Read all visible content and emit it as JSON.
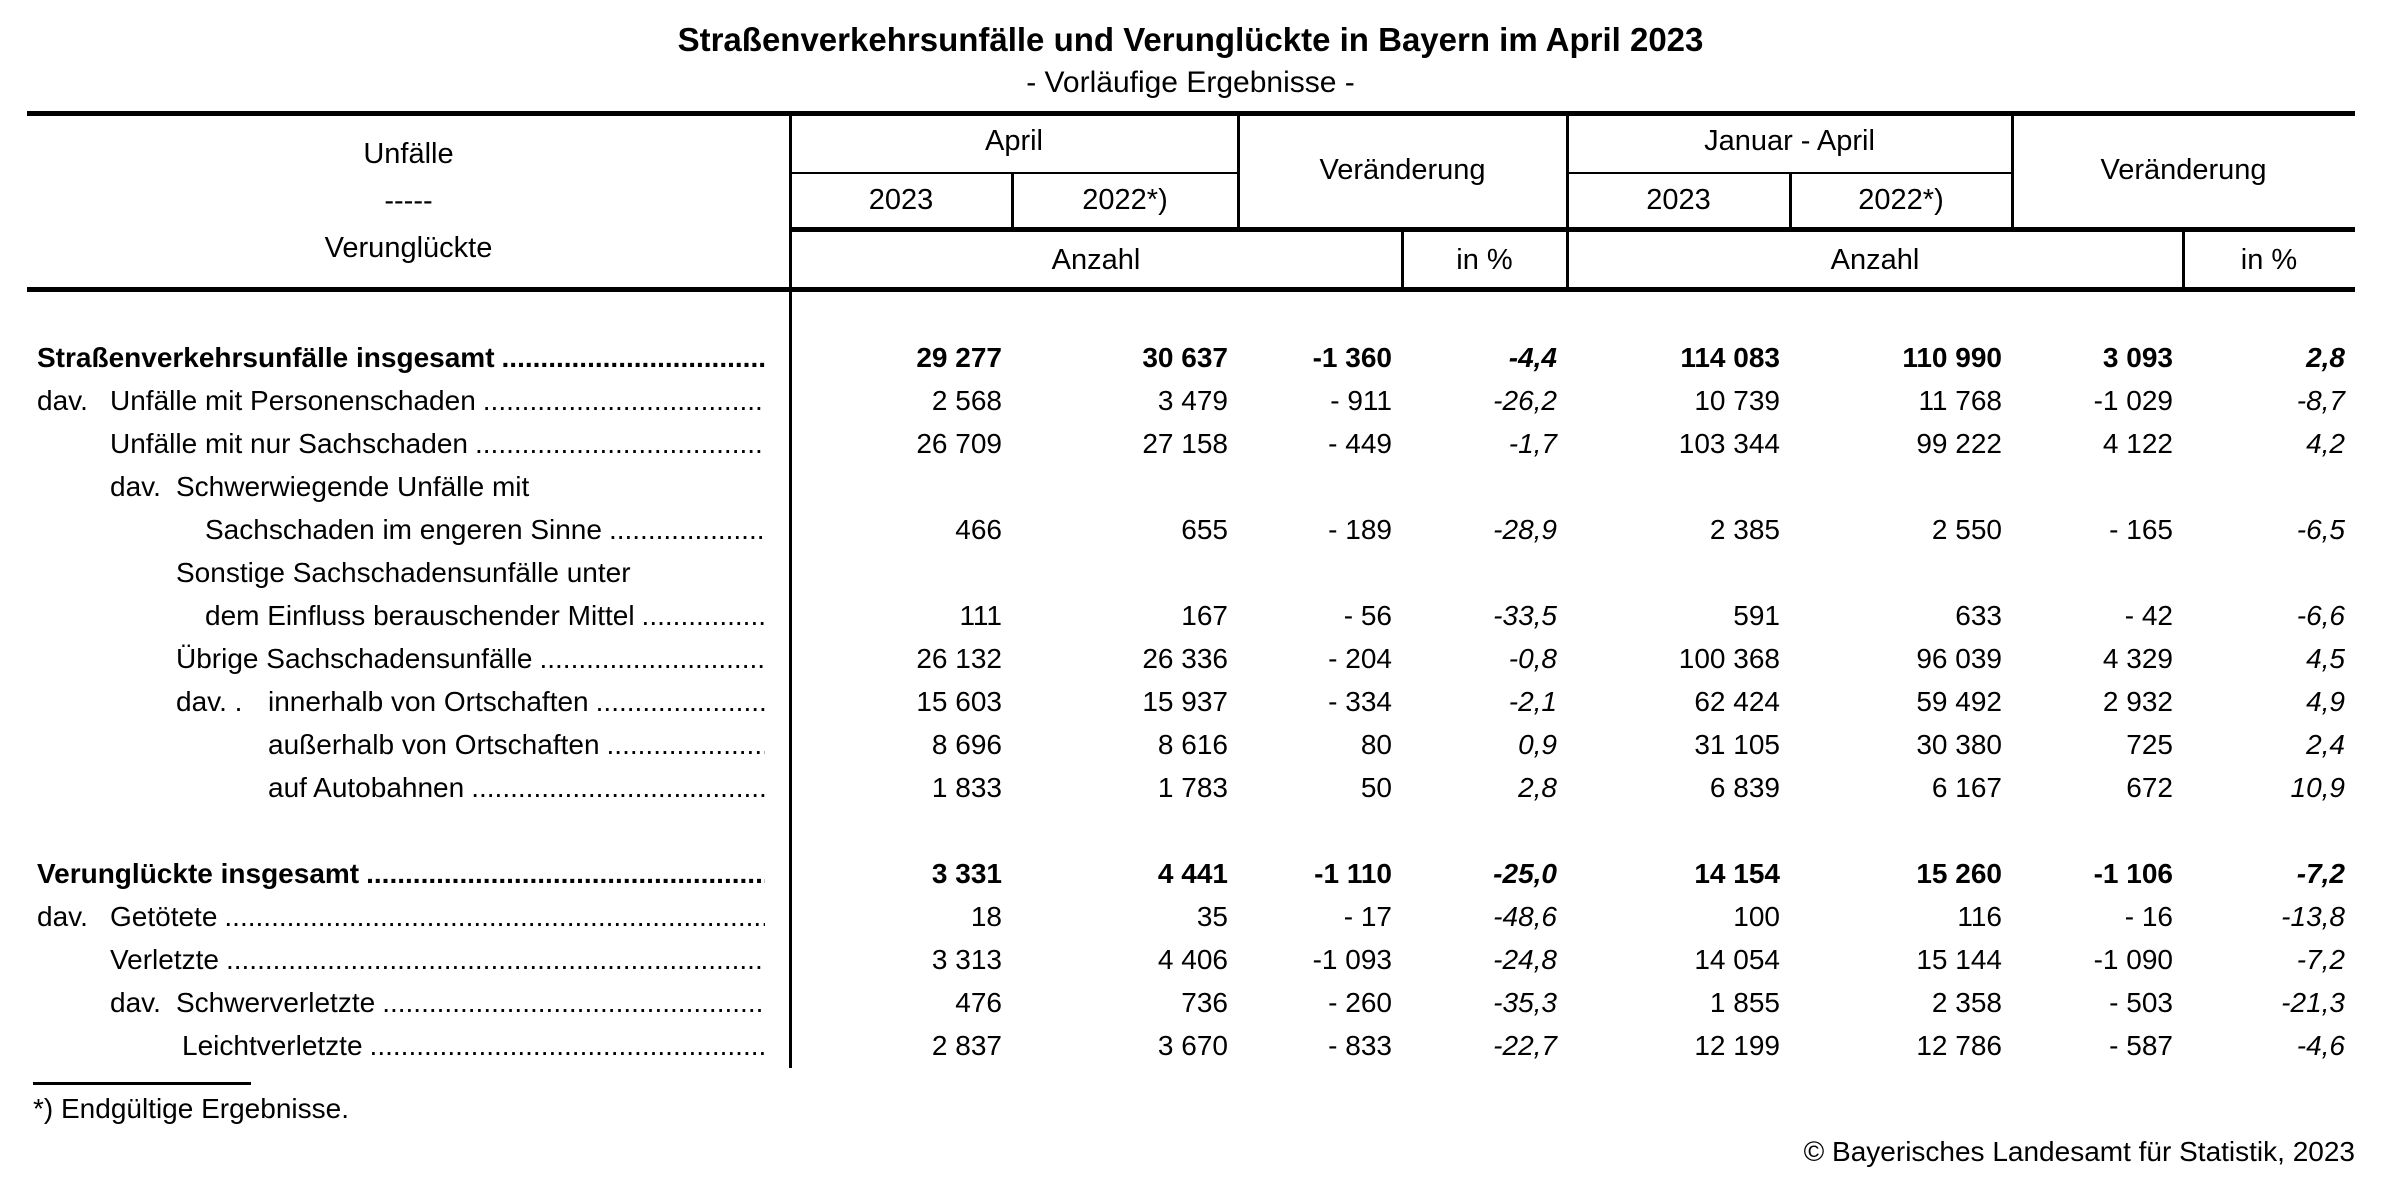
{
  "title": "Straßenverkehrsunfälle und Verunglückte in Bayern im April 2023",
  "subtitle": "- Vorläufige Ergebnisse -",
  "header": {
    "stub_line1": "Unfälle",
    "stub_line2": "-----",
    "stub_line3": "Verunglückte",
    "group_april": "April",
    "group_change_1": "Veränderung",
    "group_jan_april": "Januar - April",
    "group_change_2": "Veränderung",
    "year_2023_a": "2023",
    "year_2022_a": "2022*)",
    "year_2023_b": "2023",
    "year_2022_b": "2022*)",
    "anzahl_1": "Anzahl",
    "in_pct_1": "in %",
    "anzahl_2": "Anzahl",
    "in_pct_2": "in %"
  },
  "table": {
    "leader_dots": "........................................................................................................................................................",
    "rows": [
      {
        "text": "Straßenverkehrsunfälle insgesamt",
        "indent": 10,
        "bold": true,
        "leader": true,
        "values": [
          "29 277",
          "30 637",
          "-1 360",
          "-4,4",
          "114 083",
          "110 990",
          "3 093",
          "2,8"
        ]
      },
      {
        "prefix": "dav.",
        "prefix_indent": 10,
        "text": "Unfälle mit Personenschaden",
        "indent": 83,
        "leader": true,
        "values": [
          "2 568",
          "3 479",
          "- 911",
          "-26,2",
          "10 739",
          "11 768",
          "-1 029",
          "-8,7"
        ]
      },
      {
        "text": "Unfälle mit nur Sachschaden",
        "indent": 83,
        "leader": true,
        "values": [
          "26 709",
          "27 158",
          "- 449",
          "-1,7",
          "103 344",
          "99 222",
          "4 122",
          "4,2"
        ]
      },
      {
        "prefix": "dav.",
        "prefix_indent": 83,
        "text": "Schwerwiegende Unfälle mit",
        "indent": 149,
        "leader": false,
        "values": [
          "",
          "",
          "",
          "",
          "",
          "",
          "",
          ""
        ]
      },
      {
        "text": "Sachschaden im engeren Sinne",
        "indent": 178,
        "leader": true,
        "values": [
          "466",
          "655",
          "- 189",
          "-28,9",
          "2 385",
          "2 550",
          "- 165",
          "-6,5"
        ]
      },
      {
        "text": "Sonstige Sachschadensunfälle unter",
        "indent": 149,
        "leader": false,
        "values": [
          "",
          "",
          "",
          "",
          "",
          "",
          "",
          ""
        ]
      },
      {
        "text": "dem Einfluss berauschender Mittel",
        "indent": 178,
        "leader": true,
        "values": [
          "111",
          "167",
          "- 56",
          "-33,5",
          "591",
          "633",
          "- 42",
          "-6,6"
        ]
      },
      {
        "text": "Übrige Sachschadensunfälle",
        "indent": 149,
        "leader": true,
        "values": [
          "26 132",
          "26 336",
          "- 204",
          "-0,8",
          "100 368",
          "96 039",
          "4 329",
          "4,5"
        ]
      },
      {
        "prefix": "dav. .",
        "prefix_indent": 149,
        "text": "innerhalb von Ortschaften",
        "indent": 241,
        "leader": true,
        "values": [
          "15 603",
          "15 937",
          "- 334",
          "-2,1",
          "62 424",
          "59 492",
          "2 932",
          "4,9"
        ]
      },
      {
        "text": "außerhalb von Ortschaften",
        "indent": 241,
        "leader": true,
        "values": [
          "8 696",
          "8 616",
          "80",
          "0,9",
          "31 105",
          "30 380",
          "725",
          "2,4"
        ]
      },
      {
        "text": "auf Autobahnen",
        "indent": 241,
        "leader": true,
        "values": [
          "1 833",
          "1 783",
          "50",
          "2,8",
          "6 839",
          "6 167",
          "672",
          "10,9"
        ]
      },
      {
        "text": "Verunglückte insgesamt",
        "indent": 10,
        "bold": true,
        "leader": true,
        "gap_before": true,
        "values": [
          "3 331",
          "4 441",
          "-1 110",
          "-25,0",
          "14 154",
          "15 260",
          "-1 106",
          "-7,2"
        ]
      },
      {
        "prefix": "dav.",
        "prefix_indent": 10,
        "text": "Getötete",
        "indent": 83,
        "leader": true,
        "values": [
          "18",
          "35",
          "- 17",
          "-48,6",
          "100",
          "116",
          "- 16",
          "-13,8"
        ]
      },
      {
        "text": "Verletzte",
        "indent": 83,
        "leader": true,
        "values": [
          "3 313",
          "4 406",
          "-1 093",
          "-24,8",
          "14 054",
          "15 144",
          "-1 090",
          "-7,2"
        ]
      },
      {
        "prefix": "dav.",
        "prefix_indent": 83,
        "text": "Schwerverletzte",
        "indent": 149,
        "leader": true,
        "values": [
          "476",
          "736",
          "- 260",
          "-35,3",
          "1 855",
          "2 358",
          "- 503",
          "-21,3"
        ]
      },
      {
        "text": "Leichtverletzte",
        "indent": 155,
        "leader": true,
        "values": [
          "2 837",
          "3 670",
          "- 833",
          "-22,7",
          "12 199",
          "12 786",
          "- 587",
          "-4,6"
        ]
      }
    ]
  },
  "footnote": "*) Endgültige Ergebnisse.",
  "copyright": "© Bayerisches Landesamt für Statistik, 2023"
}
